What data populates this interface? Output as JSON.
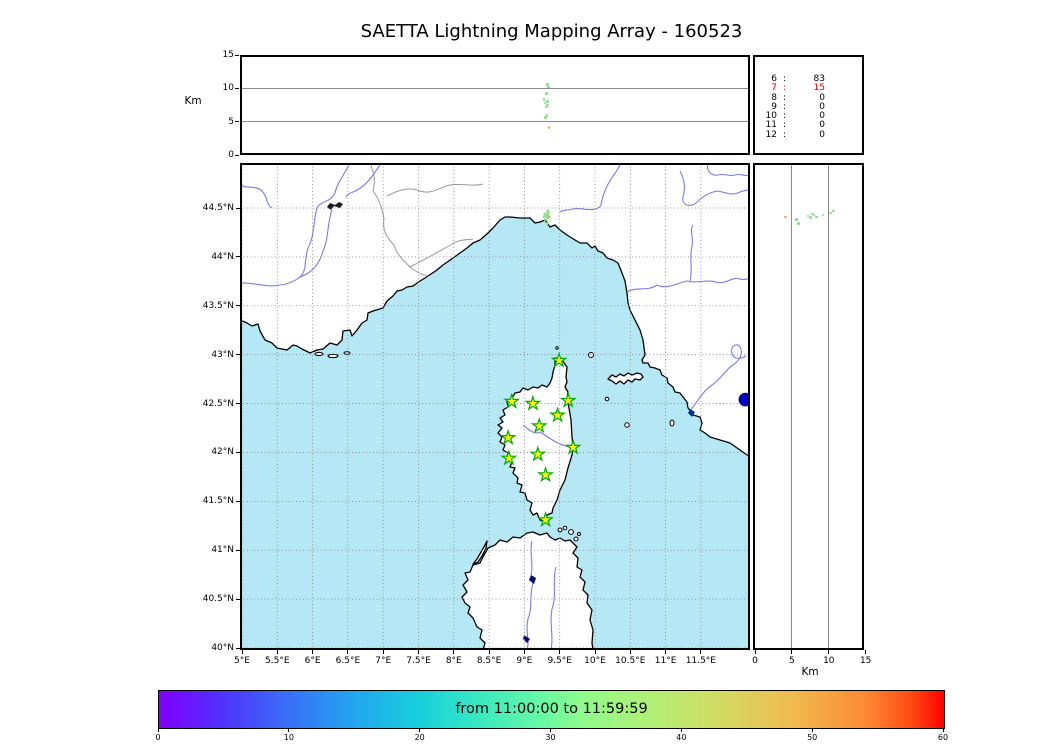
{
  "title": "SAETTA Lightning Mapping Array - 160523",
  "colors": {
    "sea": "#b6e7f5",
    "land": "#ffffff",
    "coastline": "#000000",
    "river": "#7b7bea",
    "country_border": "#999999",
    "grid": "#808080",
    "station_fill": "#ffff00",
    "station_edge": "#00aa00",
    "source_green": "#8ae08a",
    "source_orange": "#f4a55e",
    "flash_blue": "#0000cc",
    "highlight_red": "#ee0000"
  },
  "axes": {
    "top_ylabel": "Km",
    "right_xlabel": "Km",
    "alt_ticks": [
      {
        "v": 0,
        "label": "0"
      },
      {
        "v": 5,
        "label": "5"
      },
      {
        "v": 10,
        "label": "10"
      },
      {
        "v": 15,
        "label": "15"
      }
    ],
    "alt_grid": [
      5,
      10
    ],
    "lon_ticks": [
      {
        "v": 5,
        "label": "5°E"
      },
      {
        "v": 5.5,
        "label": "5.5°E"
      },
      {
        "v": 6,
        "label": "6°E"
      },
      {
        "v": 6.5,
        "label": "6.5°E"
      },
      {
        "v": 7,
        "label": "7°E"
      },
      {
        "v": 7.5,
        "label": "7.5°E"
      },
      {
        "v": 8,
        "label": "8°E"
      },
      {
        "v": 8.5,
        "label": "8.5°E"
      },
      {
        "v": 9,
        "label": "9°E"
      },
      {
        "v": 9.5,
        "label": "9.5°E"
      },
      {
        "v": 10,
        "label": "10°E"
      },
      {
        "v": 10.5,
        "label": "10.5°E"
      },
      {
        "v": 11,
        "label": "11°E"
      },
      {
        "v": 11.5,
        "label": "11.5°E"
      }
    ],
    "lat_ticks": [
      {
        "v": 44.5,
        "label": "44.5°N"
      },
      {
        "v": 44,
        "label": "44°N"
      },
      {
        "v": 43.5,
        "label": "43.5°N"
      },
      {
        "v": 43,
        "label": "43°N"
      },
      {
        "v": 42.5,
        "label": "42.5°N"
      },
      {
        "v": 42,
        "label": "42°N"
      },
      {
        "v": 41.5,
        "label": "41.5°N"
      },
      {
        "v": 41,
        "label": "41°N"
      },
      {
        "v": 40.5,
        "label": "40.5°N"
      },
      {
        "v": 40,
        "label": "40°N"
      }
    ]
  },
  "chart_data": {
    "type": "scatter",
    "title": "SAETTA Lightning Mapping Array - 160523",
    "map_extent": {
      "lon": [
        4.97,
        12.22
      ],
      "lat": [
        40.02,
        44.96
      ]
    },
    "alt_range_km": [
      0,
      15
    ],
    "grid": "0.5 degree dotted graticule; altitude panels gridded at 5 and 10 km",
    "histogram": {
      "rows": [
        {
          "level": "6",
          "count": "83",
          "highlight": false
        },
        {
          "level": "7",
          "count": "15",
          "highlight": true
        },
        {
          "level": "8",
          "count": "0",
          "highlight": false
        },
        {
          "level": "9",
          "count": "0",
          "highlight": false
        },
        {
          "level": "10",
          "count": "0",
          "highlight": false
        },
        {
          "level": "11",
          "count": "0",
          "highlight": false
        },
        {
          "level": "12",
          "count": "0",
          "highlight": false
        }
      ]
    },
    "colorbar": {
      "label": "from 11:00:00 to 11:59:59",
      "ticks": [
        0,
        10,
        20,
        30,
        40,
        50,
        60
      ],
      "range": [
        0,
        60
      ],
      "cmap": "rainbow"
    },
    "lma_stations": [
      {
        "lon": 9.49,
        "lat": 42.94
      },
      {
        "lon": 8.82,
        "lat": 42.52
      },
      {
        "lon": 9.12,
        "lat": 42.5
      },
      {
        "lon": 9.62,
        "lat": 42.53
      },
      {
        "lon": 9.47,
        "lat": 42.38
      },
      {
        "lon": 9.21,
        "lat": 42.27
      },
      {
        "lon": 8.77,
        "lat": 42.15
      },
      {
        "lon": 9.69,
        "lat": 42.05
      },
      {
        "lon": 9.19,
        "lat": 41.98
      },
      {
        "lon": 8.78,
        "lat": 41.94
      },
      {
        "lon": 9.3,
        "lat": 41.77
      },
      {
        "lon": 9.3,
        "lat": 41.31
      }
    ],
    "sources": [
      {
        "lon": 9.33,
        "lat": 44.47,
        "alt_km": 10.6,
        "color": "#8ae08a"
      },
      {
        "lon": 9.34,
        "lat": 44.45,
        "alt_km": 10.2,
        "color": "#8ae08a"
      },
      {
        "lon": 9.31,
        "lat": 44.43,
        "alt_km": 9.2,
        "color": "#8ae08a"
      },
      {
        "lon": 9.28,
        "lat": 44.41,
        "alt_km": 8.3,
        "color": "#8ae08a"
      },
      {
        "lon": 9.33,
        "lat": 44.43,
        "alt_km": 8.0,
        "color": "#8ae08a"
      },
      {
        "lon": 9.29,
        "lat": 44.44,
        "alt_km": 7.8,
        "color": "#8ae08a"
      },
      {
        "lon": 9.33,
        "lat": 44.4,
        "alt_km": 7.5,
        "color": "#8ae08a"
      },
      {
        "lon": 9.31,
        "lat": 44.42,
        "alt_km": 7.2,
        "color": "#8ae08a"
      },
      {
        "lon": 9.3,
        "lat": 44.38,
        "alt_km": 5.6,
        "color": "#8ae08a"
      },
      {
        "lon": 9.32,
        "lat": 44.34,
        "alt_km": 5.9,
        "color": "#8ae08a"
      },
      {
        "lon": 9.35,
        "lat": 44.41,
        "alt_km": 4.1,
        "color": "#f4a55e"
      }
    ],
    "flash_marker": {
      "lon": 12.13,
      "lat": 42.54,
      "color": "#0000cc"
    }
  }
}
